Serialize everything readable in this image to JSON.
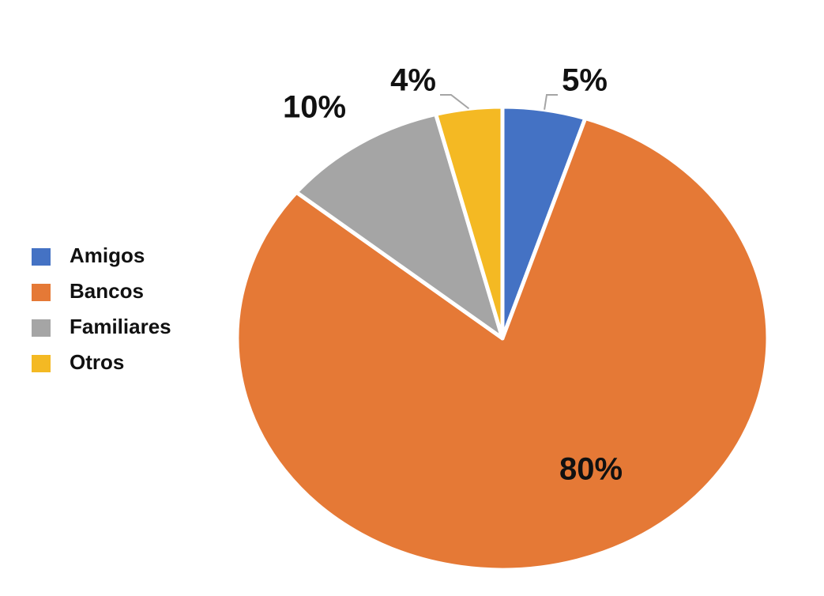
{
  "chart_data": {
    "type": "pie",
    "categories": [
      "Amigos",
      "Bancos",
      "Familiares",
      "Otros"
    ],
    "values": [
      5,
      80,
      10,
      4
    ],
    "value_labels": [
      "5%",
      "80%",
      "10%",
      "4%"
    ],
    "colors": [
      "#4472c4",
      "#e57936",
      "#a5a5a5",
      "#f4b923"
    ],
    "legend": "left"
  }
}
